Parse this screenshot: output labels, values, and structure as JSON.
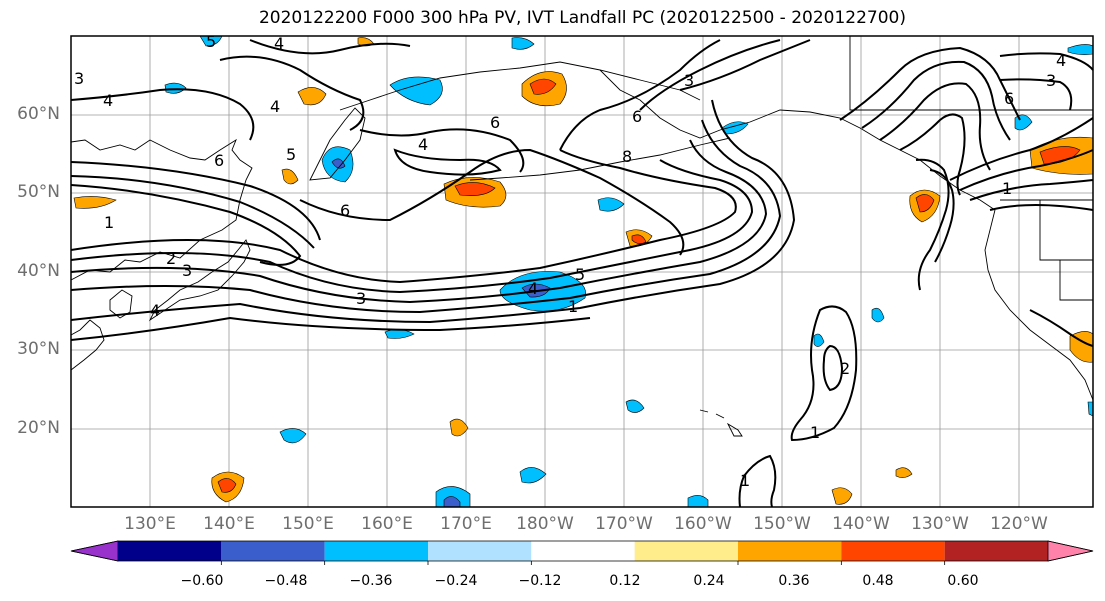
{
  "title": "2020122200 F000 300 hPa PV, IVT Landfall PC (2020122500 - 2020122700)",
  "lat_labels": [
    "60°N",
    "50°N",
    "40°N",
    "30°N",
    "20°N"
  ],
  "lon_labels": [
    "130°E",
    "140°E",
    "150°E",
    "160°E",
    "170°E",
    "180°W",
    "170°W",
    "160°W",
    "150°W",
    "140°W",
    "130°W",
    "120°W"
  ],
  "colorbar": {
    "tick_labels": [
      "−0.60",
      "−0.48",
      "−0.36",
      "−0.24",
      "−0.12",
      "0.12",
      "0.24",
      "0.36",
      "0.48",
      "0.60"
    ],
    "colors": [
      "#9932cc",
      "#00008b",
      "#3a5fcd",
      "#00bfff",
      "#b0e2ff",
      "#ffffff",
      "#ffec8b",
      "#ffa500",
      "#ff4500",
      "#b22222",
      "#ff82ab"
    ]
  },
  "contour_labels": [
    "5",
    "4",
    "3",
    "4",
    "4",
    "6",
    "5",
    "6",
    "4",
    "8",
    "6",
    "3",
    "6",
    "1",
    "2",
    "3",
    "3",
    "4",
    "5",
    "4",
    "1",
    "6",
    "2",
    "1",
    "1",
    "3",
    "4",
    "1"
  ]
}
